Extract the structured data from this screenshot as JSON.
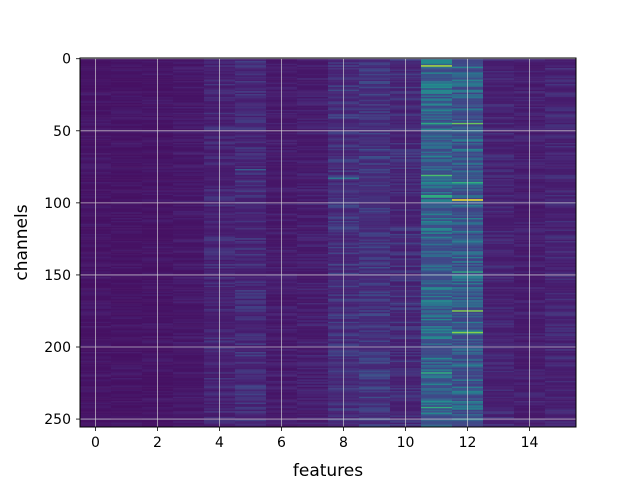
{
  "chart_data": {
    "type": "heatmap",
    "title": "",
    "xlabel": "features",
    "ylabel": "channels",
    "n_features": 16,
    "n_channels": 256,
    "xlim": [
      -0.5,
      15.5
    ],
    "ylim": [
      255.5,
      -0.5
    ],
    "x_ticks": [
      0,
      2,
      4,
      6,
      8,
      10,
      12,
      14
    ],
    "x_tick_labels": [
      "0",
      "2",
      "4",
      "6",
      "8",
      "10",
      "12",
      "14"
    ],
    "y_ticks": [
      0,
      50,
      100,
      150,
      200,
      250
    ],
    "y_tick_labels": [
      "0",
      "50",
      "100",
      "150",
      "200",
      "250"
    ],
    "grid": true,
    "colormap": "viridis",
    "value_range": [
      0,
      1
    ],
    "base_level": [
      0.07,
      0.07,
      0.07,
      0.08,
      0.12,
      0.14,
      0.09,
      0.1,
      0.16,
      0.18,
      0.14,
      0.35,
      0.32,
      0.12,
      0.1,
      0.12
    ],
    "variation": [
      0.05,
      0.05,
      0.05,
      0.06,
      0.12,
      0.14,
      0.07,
      0.09,
      0.16,
      0.17,
      0.14,
      0.35,
      0.32,
      0.1,
      0.08,
      0.1
    ],
    "hotspots": [
      {
        "feature": 12,
        "channel": 98,
        "value": 1.0
      },
      {
        "feature": 11,
        "channel": 5,
        "value": 0.92
      },
      {
        "feature": 11,
        "channel": 45,
        "value": 0.7
      },
      {
        "feature": 12,
        "channel": 45,
        "value": 0.82
      },
      {
        "feature": 11,
        "channel": 81,
        "value": 0.78
      },
      {
        "feature": 12,
        "channel": 86,
        "value": 0.72
      },
      {
        "feature": 11,
        "channel": 95,
        "value": 0.72
      },
      {
        "feature": 11,
        "channel": 96,
        "value": 0.7
      },
      {
        "feature": 12,
        "channel": 148,
        "value": 0.7
      },
      {
        "feature": 12,
        "channel": 175,
        "value": 0.86
      },
      {
        "feature": 12,
        "channel": 190,
        "value": 0.86
      },
      {
        "feature": 11,
        "channel": 218,
        "value": 0.72
      },
      {
        "feature": 11,
        "channel": 242,
        "value": 0.72
      },
      {
        "feature": 5,
        "channel": 77,
        "value": 0.38
      },
      {
        "feature": 8,
        "channel": 83,
        "value": 0.5
      }
    ],
    "colors": {
      "grid": "#d9d9d9",
      "frame": "#000000",
      "background": "#ffffff"
    }
  }
}
